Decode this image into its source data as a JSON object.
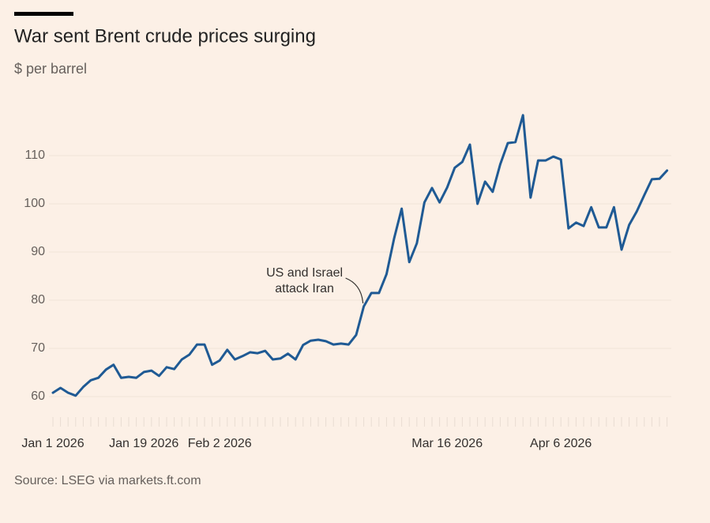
{
  "chart_data": {
    "type": "line",
    "title": "War sent Brent crude prices surging",
    "subtitle": "$ per barrel",
    "source": "Source: LSEG via markets.ft.com",
    "annotation": {
      "lines": [
        "US and Israel",
        "attack Iran"
      ],
      "index": 41
    },
    "categories": [
      "Jan 1 2026",
      null,
      null,
      null,
      null,
      null,
      null,
      null,
      null,
      null,
      null,
      null,
      "Jan 19 2026",
      null,
      null,
      null,
      null,
      null,
      null,
      null,
      null,
      null,
      "Feb 2 2026",
      null,
      null,
      null,
      null,
      null,
      null,
      null,
      null,
      null,
      null,
      null,
      null,
      null,
      null,
      null,
      null,
      null,
      null,
      null,
      null,
      null,
      null,
      null,
      null,
      null,
      null,
      null,
      null,
      null,
      "Mar 16 2026",
      null,
      null,
      null,
      null,
      null,
      null,
      null,
      null,
      null,
      null,
      null,
      null,
      null,
      null,
      "Apr 6 2026",
      null,
      null,
      null,
      null,
      null,
      null,
      null,
      null,
      null,
      null,
      null,
      null,
      null,
      null
    ],
    "values": [
      60.8,
      61.8,
      60.8,
      60.2,
      62.0,
      63.4,
      63.9,
      65.6,
      66.6,
      63.9,
      64.1,
      63.9,
      65.1,
      65.4,
      64.3,
      66.1,
      65.7,
      67.7,
      68.7,
      70.8,
      70.8,
      66.6,
      67.5,
      69.7,
      67.7,
      68.4,
      69.2,
      69.0,
      69.5,
      67.7,
      67.9,
      68.9,
      67.7,
      70.7,
      71.6,
      71.8,
      71.5,
      70.8,
      71.0,
      70.8,
      72.8,
      78.7,
      81.5,
      81.5,
      85.4,
      92.8,
      99.0,
      87.9,
      91.8,
      100.3,
      103.3,
      100.3,
      103.4,
      107.5,
      108.7,
      112.3,
      100.0,
      104.6,
      102.5,
      108.2,
      112.6,
      112.8,
      118.4,
      101.3,
      109.0,
      109.0,
      109.8,
      109.2,
      94.9,
      96.1,
      95.4,
      99.3,
      95.1,
      95.1,
      99.3,
      90.5,
      95.6,
      98.4,
      101.8,
      105.1,
      105.2,
      106.9
    ],
    "color": "#1f5a94",
    "ylim": [
      55,
      120
    ],
    "yticks": [
      60,
      70,
      80,
      90,
      100,
      110
    ],
    "grid": true
  }
}
